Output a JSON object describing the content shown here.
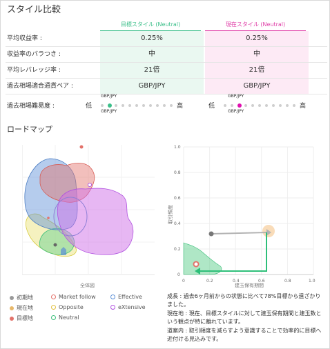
{
  "title": "スタイル比較",
  "columns": {
    "target": "目標スタイル (Neutral)",
    "current": "現在スタイル (Neutral)"
  },
  "rows": [
    {
      "label": "平均収益率 :",
      "target": "0.25%",
      "current": "0.25%"
    },
    {
      "label": "収益率のバラつき :",
      "target": "中",
      "current": "中"
    },
    {
      "label": "平均レバレッジ率 :",
      "target": "21倍",
      "current": "21倍"
    },
    {
      "label": "過去相場適合通貨ペア :",
      "target": "GBP/JPY",
      "current": "GBP/JPY"
    }
  ],
  "difficulty": {
    "label": "過去相場難易度 :",
    "low": "低",
    "high": "高",
    "pair": "GBP/JPY",
    "dot_count": 11,
    "target_index": 1,
    "current_index": 2,
    "target_color": "#3cbf8a",
    "current_color": "#e010b0"
  },
  "roadmap": {
    "title": "ロードマップ",
    "left_chart_caption": "全体図",
    "right_chart": {
      "x_label": "建玉保有期間",
      "y_label": "取引頻度",
      "x_ticks": [
        "0",
        "0.2",
        "0.4",
        "0.6",
        "0.8",
        "1.0"
      ],
      "y_ticks": [
        "1.0",
        "0.8",
        "0.6",
        "0.4",
        "0.2",
        "0"
      ]
    },
    "legend": [
      {
        "icon": "dot",
        "color": "#999999",
        "label": "初期地"
      },
      {
        "icon": "ring",
        "color": "#e3726a",
        "label": "Market follow"
      },
      {
        "icon": "ring",
        "color": "#5b8fd6",
        "label": "Effective"
      },
      {
        "icon": "dot",
        "color": "#e8b86a",
        "label": "現在地"
      },
      {
        "icon": "ring",
        "color": "#e0c040",
        "label": "Opposite"
      },
      {
        "icon": "ring",
        "color": "#b050e0",
        "label": "eXtensive"
      },
      {
        "icon": "dot",
        "color": "#e3726a",
        "label": "目標地"
      },
      {
        "icon": "ring",
        "color": "#3cbf7a",
        "label": "Neutral"
      }
    ]
  },
  "description": [
    "成長 : 過去6ヶ月前からの状態に比べて78%目標から遠ざかりました。",
    "現在地 : 現在、目標スタイルに対して建玉保有期間と建玉数という観点が特に離れています。",
    "道案内 : 取引頻度を減らすよう意識することで効率的に目標へ近付ける見込みです。"
  ]
}
